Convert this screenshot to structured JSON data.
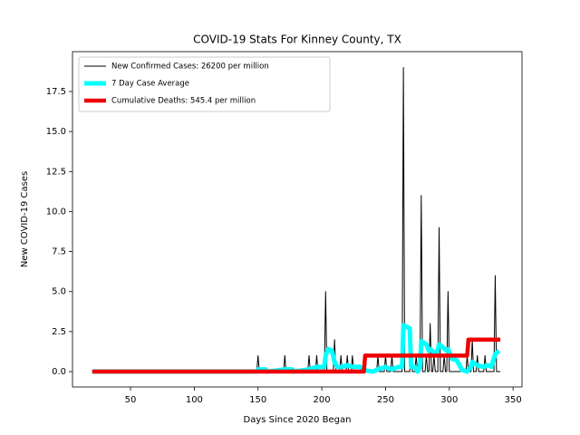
{
  "chart_data": {
    "type": "line",
    "title": "COVID-19 Stats For Kinney County, TX",
    "x_label": "Days Since 2020 Began",
    "y_label": "New COVID-19 Cases",
    "xlim": [
      4.5,
      357
    ],
    "ylim": [
      -0.96,
      19.99
    ],
    "xticks": [
      50,
      100,
      150,
      200,
      250,
      300,
      350
    ],
    "yticks": [
      {
        "value": 0,
        "label": "0.0"
      },
      2.5,
      {
        "value": 5,
        "label": "5.0"
      },
      7.5,
      {
        "value": 10,
        "label": "10.0"
      },
      12.5,
      {
        "value": 15,
        "label": "15.0"
      },
      17.5
    ],
    "legend_position": "upper left",
    "series": [
      {
        "name": "New Confirmed Cases: 26200 per million",
        "color": "#000000",
        "x": [
          20,
          149,
          150,
          151,
          170,
          171,
          172,
          189,
          190,
          191,
          195,
          196,
          197,
          202,
          203,
          204,
          209,
          210,
          211,
          214,
          215,
          216,
          219,
          220,
          221,
          223,
          224,
          225,
          243,
          244,
          245,
          249,
          250,
          251,
          254,
          255,
          256,
          263,
          264,
          265,
          269,
          270,
          271,
          273,
          274,
          275,
          277,
          278,
          279,
          281,
          282,
          283,
          284,
          285,
          286,
          287,
          288,
          289,
          291,
          292,
          293,
          295,
          296,
          297,
          298,
          299,
          300,
          313,
          314,
          315,
          317,
          318,
          319,
          321,
          322,
          323,
          327,
          328,
          329,
          335,
          336,
          337,
          340
        ],
        "values": [
          0,
          0,
          1,
          0,
          0,
          1,
          0,
          0,
          1,
          0,
          0,
          1,
          0,
          0,
          5,
          0,
          0,
          2,
          0,
          0,
          1,
          0,
          0,
          1,
          0,
          0,
          1,
          0,
          0,
          1,
          0,
          0,
          1,
          0,
          0,
          1,
          0,
          0,
          19,
          0,
          0,
          2,
          0,
          0,
          1,
          0,
          0,
          11,
          0,
          0,
          1,
          0,
          0,
          3,
          0,
          0,
          1,
          0,
          0,
          9,
          0,
          0,
          1,
          0,
          0,
          5,
          0,
          0,
          1,
          0,
          0,
          2,
          0,
          0,
          1,
          0,
          0,
          1,
          0,
          0,
          6,
          0,
          0
        ]
      },
      {
        "name": "7 Day Case Average",
        "color": "#00ffff",
        "x": [
          20,
          149,
          150,
          156,
          157,
          171,
          177,
          178,
          190,
          196,
          202,
          203,
          205,
          208,
          210,
          212,
          216,
          220,
          224,
          230,
          232,
          240,
          244,
          250,
          255,
          260,
          263,
          264,
          269,
          270,
          273,
          275,
          277,
          278,
          282,
          284,
          285,
          290,
          292,
          298,
          299,
          302,
          306,
          310,
          314,
          317,
          318,
          322,
          326,
          330,
          333,
          336,
          339
        ],
        "values": [
          0,
          0,
          0.14,
          0.14,
          0,
          0.14,
          0.14,
          0,
          0.14,
          0.29,
          0.29,
          1.0,
          1.4,
          1.3,
          0.6,
          0.3,
          0.3,
          0.4,
          0.3,
          0.3,
          0.1,
          0,
          0.14,
          0.29,
          0.14,
          0.29,
          0.3,
          2.9,
          2.7,
          0.3,
          0.3,
          0,
          0.3,
          1.9,
          1.7,
          1.3,
          1.4,
          1.1,
          1.7,
          1.3,
          1.4,
          0.8,
          0.7,
          0.1,
          0,
          0.3,
          0.6,
          0.4,
          0.3,
          0.4,
          0.3,
          1.1,
          1.3
        ]
      },
      {
        "name": "Cumulative Deaths: 545.4 per million",
        "color": "#ee0000",
        "x": [
          20,
          233,
          234,
          314,
          315,
          340
        ],
        "values": [
          0,
          0,
          1,
          1,
          2,
          2
        ]
      }
    ]
  }
}
